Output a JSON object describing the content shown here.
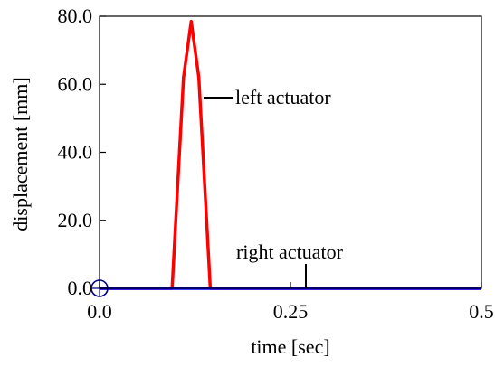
{
  "chart_data": {
    "type": "line",
    "xlabel": "time [sec]",
    "ylabel": "displacement [mm]",
    "xlim": [
      0,
      0.5
    ],
    "ylim": [
      0,
      80
    ],
    "xticks": [
      0,
      0.25,
      0.5
    ],
    "xtick_labels": [
      "0.0",
      "0.25",
      "0.5"
    ],
    "yticks": [
      0,
      20,
      40,
      60,
      80
    ],
    "ytick_labels": [
      "0.0",
      "20.0",
      "40.0",
      "60.0",
      "80.0"
    ],
    "grid": false,
    "legend": "none",
    "series": [
      {
        "name": "left actuator",
        "color": "#ff0000",
        "x": [
          0.0,
          0.095,
          0.11,
          0.12,
          0.13,
          0.145,
          0.5
        ],
        "y": [
          0.0,
          0.0,
          62.0,
          78.5,
          62.0,
          0.0,
          0.0
        ]
      },
      {
        "name": "right actuator",
        "color": "#0000ff",
        "x": [
          0.0,
          0.5
        ],
        "y": [
          0.0,
          0.0
        ]
      }
    ],
    "annotations": [
      {
        "text": "left actuator",
        "series": "left actuator"
      },
      {
        "text": "right actuator",
        "series": "right actuator"
      }
    ]
  }
}
